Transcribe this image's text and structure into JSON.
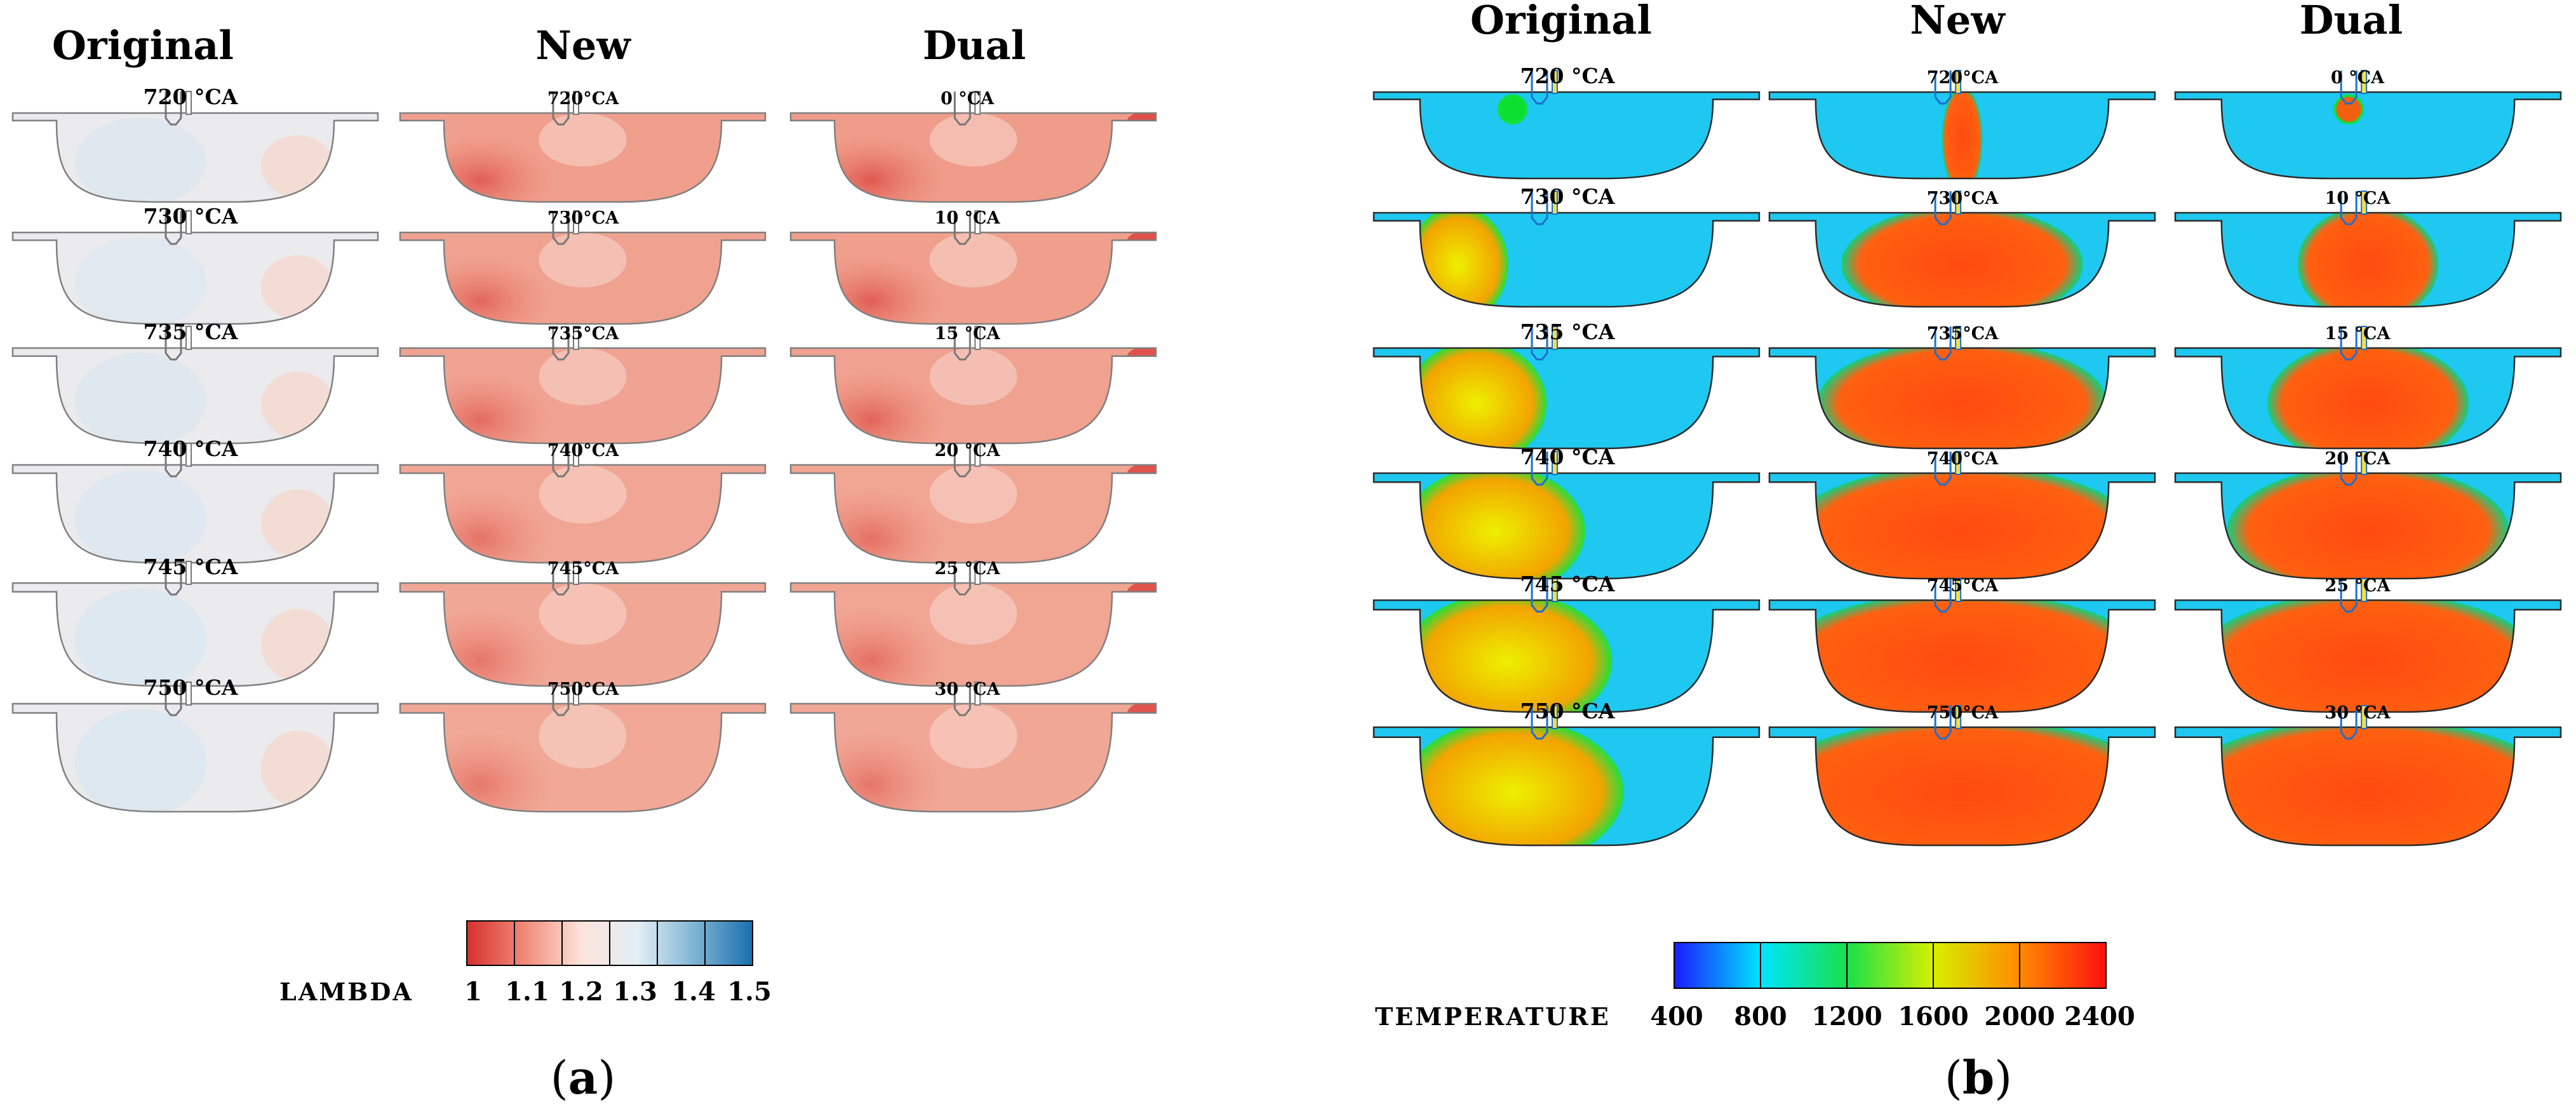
{
  "panels": [
    {
      "label": "a",
      "quantity": "LAMBDA",
      "columns": [
        {
          "title": "Original",
          "angles": [
            "720 °CA",
            "730 °CA",
            "735 °CA",
            "740 °CA",
            "745 °CA",
            "750 °CA"
          ]
        },
        {
          "title": "New",
          "angles": [
            "720°CA",
            "730°CA",
            "735°CA",
            "740°CA",
            "745°CA",
            "750°CA"
          ]
        },
        {
          "title": "Dual",
          "angles": [
            "0 °CA",
            "10 °CA",
            "15 °CA",
            "20 °CA",
            "25 °CA",
            "30 °CA"
          ]
        }
      ],
      "colorbar": {
        "ticks": [
          "1",
          "1.1",
          "1.2",
          "1.3",
          "1.4",
          "1.5"
        ],
        "colors": [
          "#d7302d",
          "#f08a78",
          "#fce3db",
          "#e3eef5",
          "#7db3d3",
          "#1a6fad"
        ]
      }
    },
    {
      "label": "b",
      "quantity": "TEMPERATURE",
      "columns": [
        {
          "title": "Original",
          "angles": [
            "720 °CA",
            "730 °CA",
            "735 °CA",
            "740 °CA",
            "745 °CA",
            "750 °CA"
          ]
        },
        {
          "title": "New",
          "angles": [
            "720°CA",
            "730°CA",
            "735°CA",
            "740°CA",
            "745°CA",
            "750°CA"
          ]
        },
        {
          "title": "Dual",
          "angles": [
            "0 °CA",
            "10 °CA",
            "15 °CA",
            "20 °CA",
            "25 °CA",
            "30 °CA"
          ]
        }
      ],
      "colorbar": {
        "ticks": [
          "400",
          "800",
          "1200",
          "1600",
          "2000",
          "2400"
        ],
        "colors": [
          "#1a1aff",
          "#00e5ff",
          "#18e04a",
          "#d7f000",
          "#ff8a00",
          "#ff1010"
        ]
      }
    }
  ],
  "fields": {
    "a": [
      {
        "levels": [
          0.05,
          0.18,
          0.3,
          0.42,
          0.55,
          0.68
        ],
        "accents": [
          0.15,
          0.18,
          0.2,
          0.18,
          0.12,
          0.1
        ]
      },
      {
        "levels": [
          0.15,
          0.14,
          0.13,
          0.12,
          0.11,
          0.1
        ],
        "accents": [
          0.5,
          0.42,
          0.38,
          0.32,
          0.3,
          0.28
        ]
      },
      {
        "levels": [
          0.5,
          0.45,
          0.4,
          0.3,
          0.25,
          0.2
        ],
        "accents": [
          0.55,
          0.5,
          0.45,
          0.35,
          0.35,
          0.3
        ]
      }
    ],
    "b": [
      {
        "levels": [
          0.05,
          0.25,
          0.35,
          0.45,
          0.52,
          0.55
        ],
        "accents": [
          0.1,
          0.55,
          0.6,
          0.62,
          0.64,
          0.65
        ]
      },
      {
        "levels": [
          0.1,
          0.6,
          0.72,
          0.85,
          0.92,
          1.0
        ],
        "accents": [
          0.2,
          0.78,
          0.8,
          0.82,
          0.83,
          0.84
        ]
      },
      {
        "levels": [
          0.05,
          0.35,
          0.5,
          0.7,
          0.85,
          0.95
        ],
        "accents": [
          0.15,
          0.72,
          0.72,
          0.72,
          0.72,
          0.74
        ]
      }
    ]
  }
}
